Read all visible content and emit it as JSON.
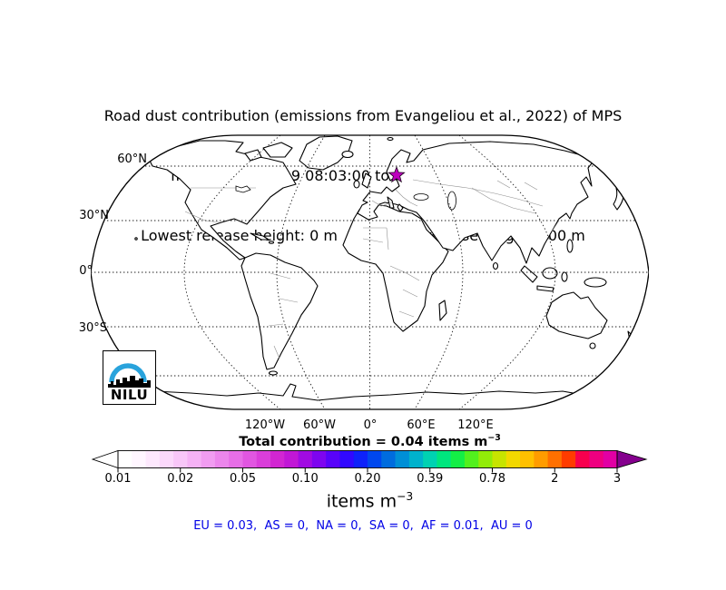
{
  "figure": {
    "title_line1": "Road dust contribution (emissions from Evangeliou et al., 2022) of MPS",
    "title_line2": "from 21-Oct-2019 08:03:00 to 30-Oct-2019 08:35:00",
    "title_line3": "Lowest release height: 0 m      Highest release height: 100 m"
  },
  "map": {
    "lat_labels": [
      "60°N",
      "30°N",
      "0°",
      "30°S"
    ],
    "lon_labels": [
      "120°W",
      "60°W",
      "0°",
      "60°E",
      "120°E"
    ],
    "marker_color": "#BE00BE"
  },
  "total": {
    "text": "Total contribution = 0.04 items m",
    "exponent": "−3"
  },
  "colorbar": {
    "tick_labels": [
      "0.01",
      "0.02",
      "0.05",
      "0.10",
      "0.20",
      "0.39",
      "0.78",
      "2",
      "3"
    ],
    "colors": [
      "#FFFFFF",
      "#FFF6FF",
      "#FDE8FD",
      "#FBD8FB",
      "#F8C6F8",
      "#F5B2F5",
      "#F19CF1",
      "#EC86EC",
      "#E76EE7",
      "#E156E1",
      "#DA3EDA",
      "#D226D2",
      "#C117D6",
      "#A10BE2",
      "#7E05EF",
      "#5803FA",
      "#3108FF",
      "#0E22FA",
      "#0047EE",
      "#006CDE",
      "#008FD6",
      "#00B2CC",
      "#00D2B2",
      "#00E67E",
      "#14EE46",
      "#52F01E",
      "#92EC08",
      "#C7E400",
      "#F2D800",
      "#FFC000",
      "#FF9C00",
      "#FF7000",
      "#FF3C00",
      "#F8004E",
      "#EE0080",
      "#E100A4"
    ],
    "left_arrow_color": "#FFFFFF",
    "right_arrow_color": "#85008E",
    "unit_text": "items m",
    "unit_exponent": "−3"
  },
  "regions": {
    "summary_text": "EU = 0.03,  AS = 0,  NA = 0,  SA = 0,  AF = 0.01,  AU = 0",
    "text_color": "#0000E6",
    "values": [
      {
        "region": "EU",
        "value": "0.03"
      },
      {
        "region": "AS",
        "value": "0"
      },
      {
        "region": "NA",
        "value": "0"
      },
      {
        "region": "SA",
        "value": "0"
      },
      {
        "region": "AF",
        "value": "0.01"
      },
      {
        "region": "AU",
        "value": "0"
      }
    ]
  },
  "logo": {
    "text": "NILU",
    "arc_color": "#29A3DC"
  }
}
